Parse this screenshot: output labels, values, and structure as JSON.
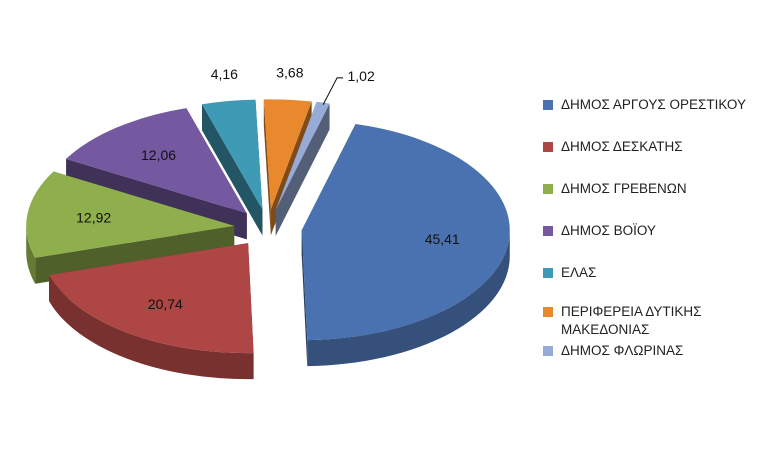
{
  "chart_data": {
    "type": "pie",
    "title": "",
    "categories": [
      "ΔΗΜΟΣ ΑΡΓΟΥΣ ΟΡΕΣΤΙΚΟΥ",
      "ΔΗΜΟΣ ΔΕΣΚΑΤΗΣ",
      "ΔΗΜΟΣ ΓΡΕΒΕΝΩΝ",
      "ΔΗΜΟΣ ΒΟΪΟΥ",
      "ΕΛΑΣ",
      "ΠΕΡΙΦΕΡΕΙΑ ΔΥΤΙΚΗΣ ΜΑΚΕΔΟΝΙΑΣ",
      "ΔΗΜΟΣ ΦΛΩΡΙΝΑΣ"
    ],
    "values": [
      45.41,
      20.74,
      12.92,
      12.06,
      4.16,
      3.68,
      1.02
    ],
    "value_labels": [
      "45,41",
      "20,74",
      "12,92",
      "12,06",
      "4,16",
      "3,68",
      "1,02"
    ],
    "colors": [
      "#4a72b0",
      "#ad4644",
      "#8fae4c",
      "#7459a0",
      "#3f9bb5",
      "#e8892d",
      "#96acd6"
    ],
    "legend_position": "right",
    "exploded": true,
    "style": "3d"
  }
}
